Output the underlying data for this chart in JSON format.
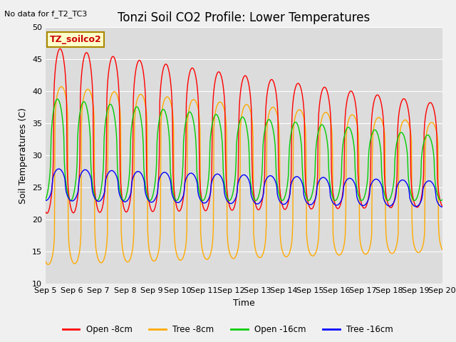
{
  "title": "Tonzi Soil CO2 Profile: Lower Temperatures",
  "subtitle": "No data for f_T2_TC3",
  "ylabel": "Soil Temperatures (C)",
  "xlabel": "Time",
  "legend_label": "TZ_soilco2",
  "ylim": [
    10,
    50
  ],
  "series_labels": [
    "Open -8cm",
    "Tree -8cm",
    "Open -16cm",
    "Tree -16cm"
  ],
  "series_colors": [
    "#ff0000",
    "#ffaa00",
    "#00cc00",
    "#0000ff"
  ],
  "xtick_labels": [
    "Sep 5",
    "Sep 6",
    "Sep 7",
    "Sep 8",
    "Sep 9",
    "Sep 10",
    "Sep 11",
    "Sep 12",
    "Sep 13",
    "Sep 14",
    "Sep 15",
    "Sep 16",
    "Sep 17",
    "Sep 18",
    "Sep 19",
    "Sep 20"
  ],
  "background_color": "#dcdcdc",
  "title_fontsize": 12,
  "axis_fontsize": 9,
  "tick_fontsize": 8
}
